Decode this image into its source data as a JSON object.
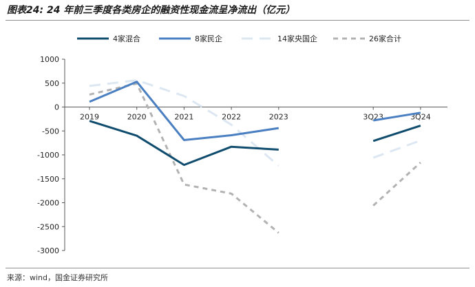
{
  "figure": {
    "title": "图表24: 24 年前三季度各类房企的融资性现金流呈净流出（亿元）",
    "source": "来源：wind，国金证券研究所"
  },
  "chart_data": {
    "type": "line",
    "categories": [
      "2019",
      "2020",
      "2021",
      "2022",
      "2023",
      "",
      "3Q23",
      "3Q24"
    ],
    "ylim": [
      -3000,
      1000
    ],
    "yticks": [
      1000,
      500,
      0,
      -500,
      -1000,
      -1500,
      -2000,
      -2500,
      -3000
    ],
    "grid": false,
    "legend_position": "top",
    "series": [
      {
        "name": "4家混合",
        "color": "#0f4c6e",
        "dash": "solid",
        "values": [
          -290,
          -600,
          -1210,
          -830,
          -890,
          null,
          -710,
          -390
        ]
      },
      {
        "name": "8家民企",
        "color": "#4a7fc1",
        "dash": "solid",
        "values": [
          110,
          530,
          -690,
          -590,
          -440,
          null,
          -280,
          -120
        ]
      },
      {
        "name": "14家央国企",
        "color": "#dce7f2",
        "dash": "long-dash",
        "values": [
          440,
          560,
          230,
          -370,
          -1230,
          null,
          -1060,
          -700
        ]
      },
      {
        "name": "26家合计",
        "color": "#b2b2b2",
        "dash": "dashed",
        "values": [
          260,
          490,
          -1620,
          -1810,
          -2630,
          null,
          -2060,
          -1160
        ]
      }
    ]
  }
}
